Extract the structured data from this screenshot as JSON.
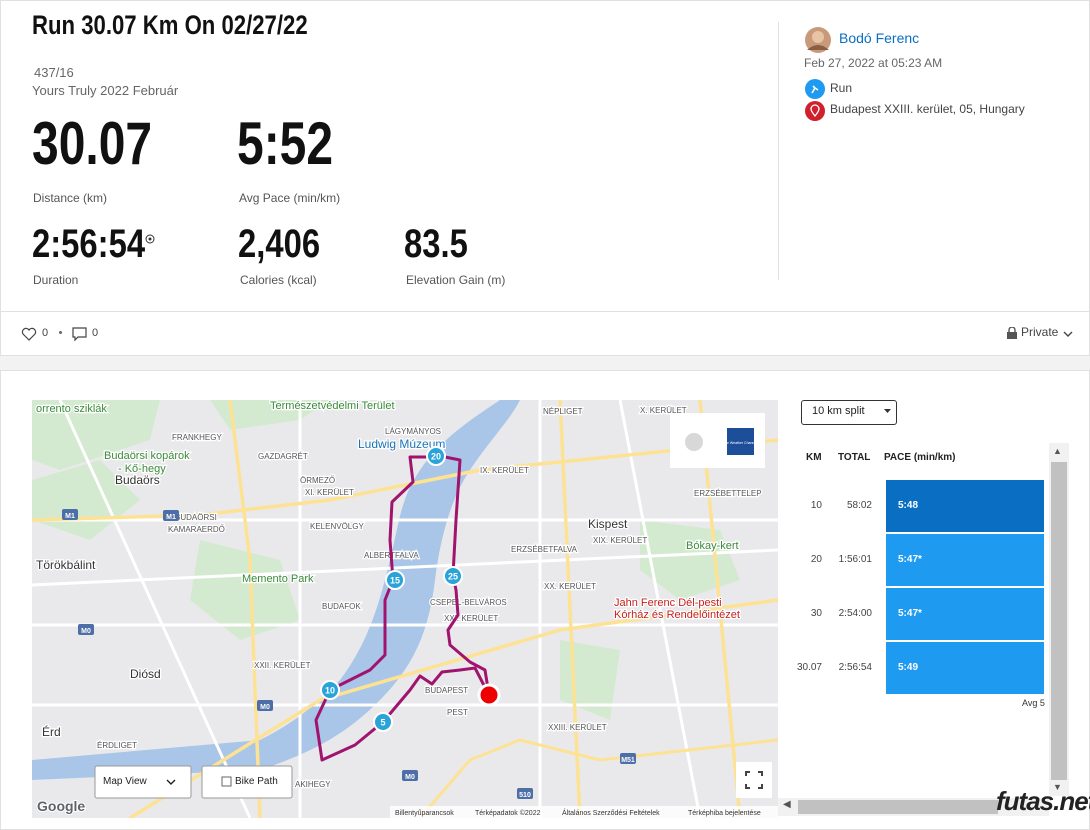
{
  "header": {
    "title": "Run 30.07 Km On 02/27/22",
    "route_id": "437/16",
    "route_name": "Yours Truly 2022 Február"
  },
  "stats": [
    {
      "value": "30.07",
      "label": "Distance (km)"
    },
    {
      "value": "5:52",
      "label": "Avg Pace (min/km)"
    },
    {
      "value": "2:56:54",
      "label": "Duration"
    },
    {
      "value": "2,406",
      "label": "Calories (kcal)"
    },
    {
      "value": "83.5",
      "label": "Elevation Gain (m)"
    }
  ],
  "user": {
    "name": "Bodó Ferenc",
    "datetime": "Feb 27, 2022 at 05:23 AM",
    "activity": "Run",
    "location": "Budapest XXIII. kerület, 05, Hungary"
  },
  "social": {
    "likes": "0",
    "comments": "0",
    "privacy": "Private"
  },
  "map": {
    "labels": [
      "orrento sziklák",
      "Természetvédelmi Terület",
      "LÁGYMÁNYOS",
      "Ludwig Múzeum",
      "NÉPLIGET",
      "X. KERÜLET",
      "FRANKHEGY",
      "Budaörsi kopárok",
      "- Kő-hegy",
      "Budaörs",
      "GAZDAGRÉT",
      "IX. KERÜLET",
      "ÖRMEZŐ",
      "XI. KERÜLET",
      "ERZSÉBETTELEP",
      "KELENVÖLGY",
      "BUDAÖRSI",
      "KAMARAERDŐ",
      "Kispest",
      "ALBERTFALVA",
      "ERZSÉBETFALVA",
      "XIX. KERÜLET",
      "Törökbálint",
      "Bókay-kert",
      "Memento Park",
      "CSEPEL-BELVÁROS",
      "XX. KERÜLET",
      "BUDAFOK",
      "XXI. KERÜLET",
      "Jahn Ferenc Dél-pesti",
      "Kórház és Rendelőintézet",
      "XXII. KERÜLET",
      "Diósd",
      "BUDAPEST",
      "PEST",
      "Érd",
      "XXIII. KERÜLET",
      "ÉRDLIGET",
      "AKIHEGY"
    ],
    "shields": [
      "M1",
      "M1",
      "M0",
      "M0",
      "M0",
      "M51",
      "510"
    ],
    "markers": [
      "20",
      "15",
      "25",
      "10",
      "5"
    ],
    "view_control": "Map View",
    "bike_path": "Bike Path",
    "weather": "The Weather Channel",
    "google": "Google",
    "footer": [
      "Billentyűparancsok",
      "Térképadatok ©2022",
      "Általános Szerződési Feltételek",
      "Térképhiba bejelentése"
    ]
  },
  "splits": {
    "selector": "10 km split",
    "columns": [
      "KM",
      "TOTAL",
      "PACE (min/km)"
    ],
    "rows": [
      [
        "10",
        "58:02",
        "5:48"
      ],
      [
        "20",
        "1:56:01",
        "5:47*"
      ],
      [
        "30",
        "2:54:00",
        "5:47*"
      ],
      [
        "30.07",
        "2:56:54",
        "5:49"
      ]
    ],
    "avg": "Avg 5"
  },
  "watermark": "futas.net"
}
